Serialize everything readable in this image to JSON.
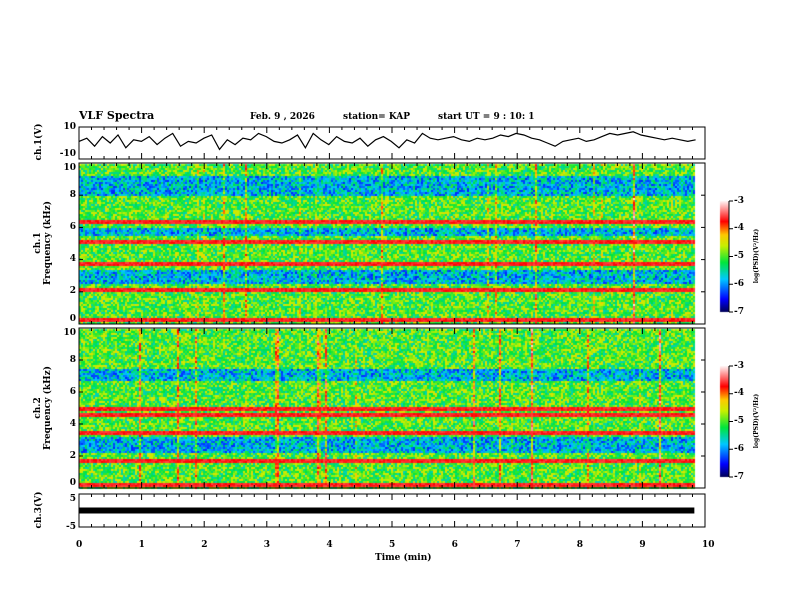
{
  "header": {
    "title": "VLF Spectra",
    "date": "Feb. 9  , 2026",
    "station": "station= KAP",
    "start": "start  UT =   9 : 10: 1"
  },
  "chart_data": [
    {
      "type": "line",
      "name": "ch1",
      "ylabel": "ch.1(V)",
      "ylim": [
        -10,
        10
      ],
      "yticks": [
        "10",
        "-10"
      ],
      "xlim": [
        0,
        10
      ],
      "values": [
        1,
        3,
        -2,
        4,
        0,
        5,
        -3,
        2,
        1,
        4,
        -1,
        3,
        6,
        -2,
        1,
        0,
        3,
        5,
        -4,
        2,
        -1,
        3,
        2,
        6,
        4,
        1,
        0,
        2,
        5,
        -3,
        6,
        2,
        -1,
        4,
        1,
        0,
        3,
        -2,
        2,
        4,
        1,
        -3,
        2,
        0,
        6,
        3,
        2,
        3,
        4,
        2,
        1,
        3,
        2,
        3,
        5,
        4,
        6,
        5,
        3,
        2,
        0,
        -2,
        1,
        2,
        3,
        1,
        2,
        4,
        6,
        5,
        6,
        7,
        5,
        4,
        3,
        2,
        3,
        2,
        1,
        2
      ]
    },
    {
      "type": "heatmap",
      "name": "ch1-spectrogram",
      "ylabel": "ch.1\nFrequency (kHz)",
      "ylim": [
        0,
        10
      ],
      "yticks": [
        "0",
        "2",
        "4",
        "6",
        "8",
        "10"
      ],
      "xlim": [
        0,
        9.83
      ],
      "red_bands_khz": [
        0.3,
        2.2,
        3.8,
        5.2,
        6.4
      ],
      "blue_bands_khz": [
        [
          2.6,
          3.4
        ],
        [
          5.5,
          6.0
        ],
        [
          8.0,
          9.2
        ]
      ],
      "colorbar": {
        "label": "log(PSD)(V²/Hz)",
        "range": [
          -7,
          -3
        ],
        "ticks": [
          "-3",
          "-4",
          "-5",
          "-6",
          "-7"
        ]
      }
    },
    {
      "type": "heatmap",
      "name": "ch2-spectrogram",
      "ylabel": "ch.2\nFrequency (kHz)",
      "ylim": [
        0,
        10
      ],
      "yticks": [
        "0",
        "2",
        "4",
        "6",
        "8",
        "10"
      ],
      "xlim": [
        0,
        9.83
      ],
      "red_bands_khz": [
        0.2,
        1.8,
        3.5,
        4.6,
        5.0
      ],
      "blue_bands_khz": [
        [
          2.3,
          3.2
        ],
        [
          6.8,
          7.5
        ]
      ],
      "colorbar": {
        "label": "log(PSD)(V²/Hz)",
        "range": [
          -7,
          -3
        ],
        "ticks": [
          "-3",
          "-4",
          "-5",
          "-6",
          "-7"
        ]
      }
    },
    {
      "type": "line",
      "name": "ch3",
      "ylabel": "ch.3(V)",
      "ylim": [
        -5,
        5
      ],
      "yticks": [
        "5",
        "-5"
      ],
      "xlim": [
        0,
        10
      ],
      "values": [
        0,
        0,
        0,
        0,
        0,
        0,
        0,
        0,
        0,
        0
      ]
    }
  ],
  "xaxis": {
    "label": "Time  (min)",
    "ticks": [
      "0",
      "1",
      "2",
      "3",
      "4",
      "5",
      "6",
      "7",
      "8",
      "9",
      "10"
    ]
  }
}
